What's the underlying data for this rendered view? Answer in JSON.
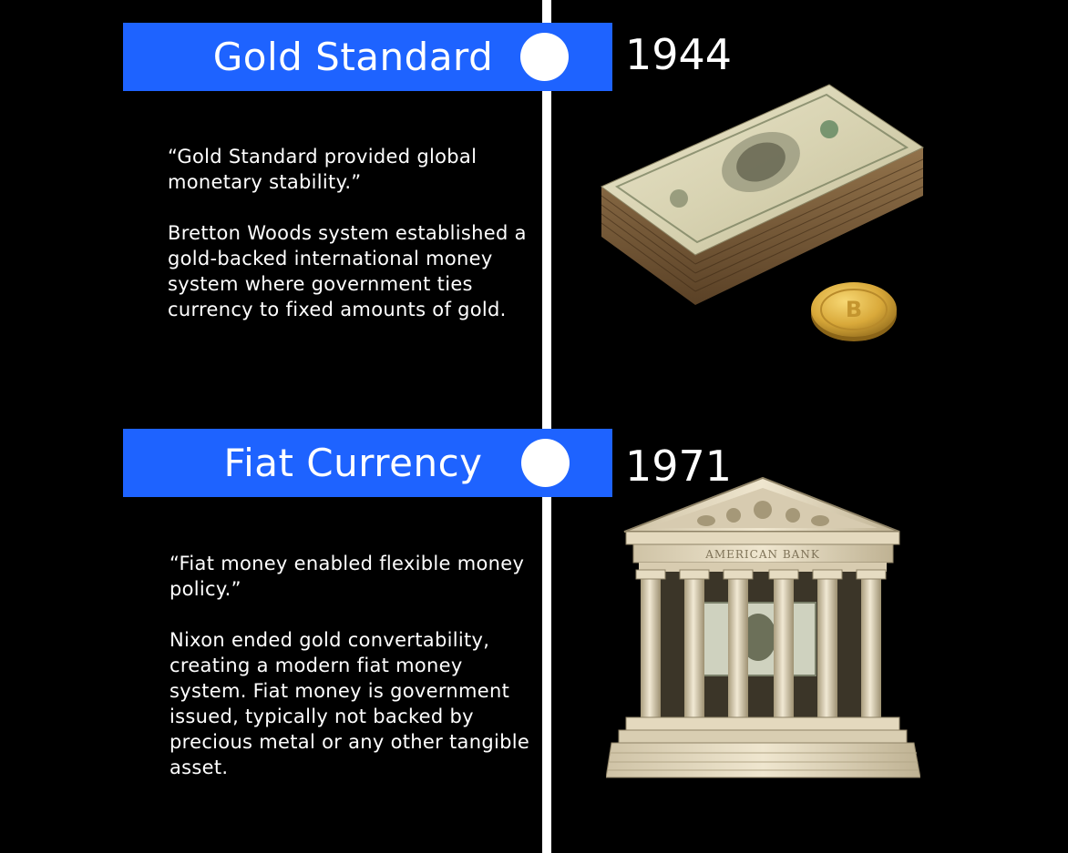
{
  "timeline": [
    {
      "title": "Gold Standard",
      "year": "1944",
      "quote": "“Gold Standard provided global monetary stability.”",
      "body": "Bretton Woods system established a gold-backed international money system where government ties currency to fixed amounts of gold.",
      "image_icon": "money-stack-with-coin-icon"
    },
    {
      "title": "Fiat Currency",
      "year": "1971",
      "quote": "“Fiat money enabled flexible money policy.”",
      "body": "Nixon ended gold convertability, creating a modern fiat money system. Fiat money is  government issued, typically not backed by precious metal or any other tangible asset.",
      "image_icon": "bank-building-icon",
      "image_text": "AMERICAN BANK"
    }
  ],
  "colors": {
    "background": "#000000",
    "banner": "#1e63ff",
    "line": "#ffffff",
    "text": "#ffffff"
  }
}
